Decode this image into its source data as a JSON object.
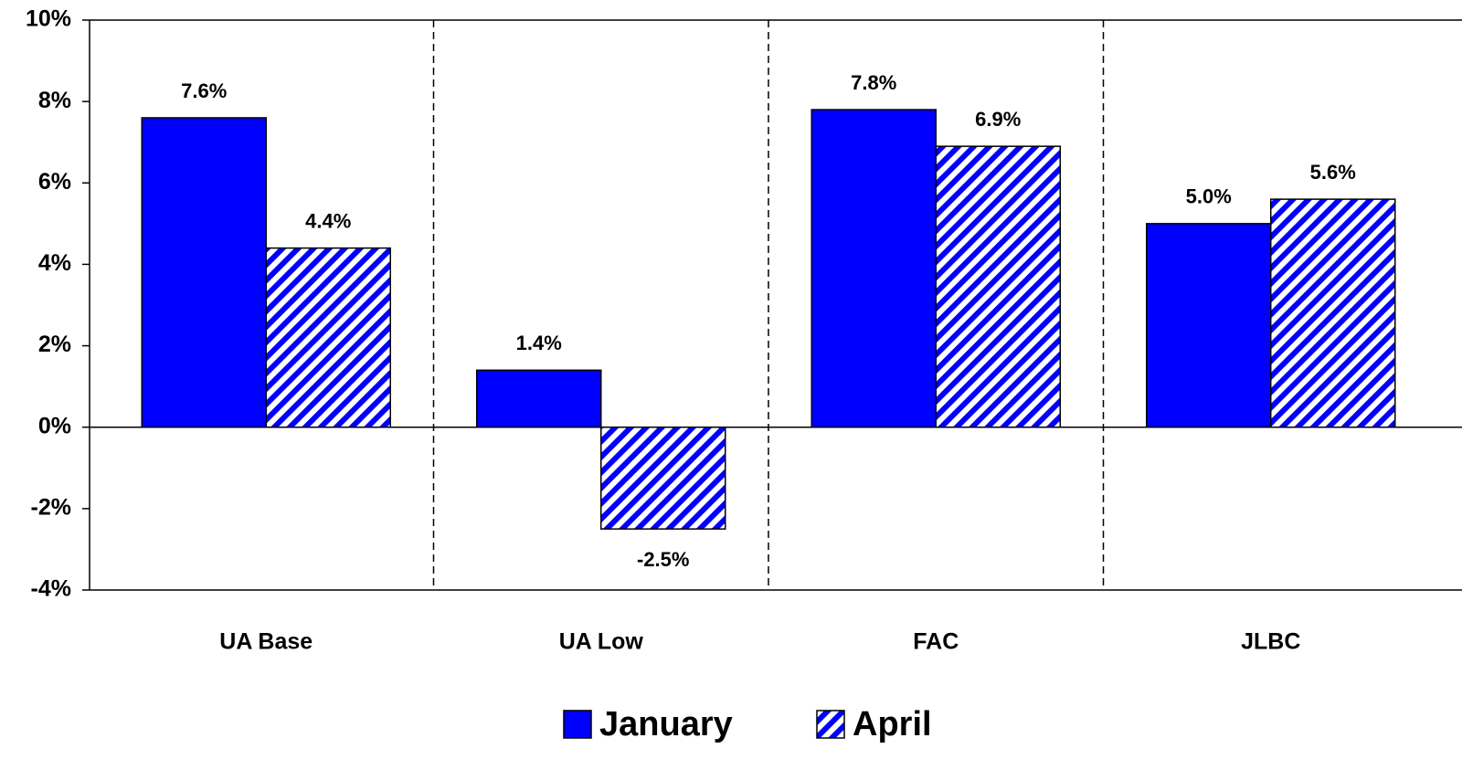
{
  "chart_data": {
    "type": "bar",
    "categories": [
      "UA Base",
      "UA Low",
      "FAC",
      "JLBC"
    ],
    "series": [
      {
        "name": "January",
        "color": "#0000ff",
        "values": [
          7.6,
          1.4,
          7.8,
          5.0
        ],
        "value_labels": [
          "7.6%",
          "1.4%",
          "7.8%",
          "5.0%"
        ]
      },
      {
        "name": "April",
        "color": "#0000ff",
        "hatch": true,
        "values": [
          4.4,
          -2.5,
          6.9,
          5.6
        ],
        "value_labels": [
          "4.4%",
          "-2.5%",
          "6.9%",
          "5.6%"
        ]
      }
    ],
    "ylim": [
      -4,
      10
    ],
    "yticks": [
      {
        "value": -4,
        "label": "-4%"
      },
      {
        "value": -2,
        "label": "-2%"
      },
      {
        "value": 0,
        "label": "0%"
      },
      {
        "value": 2,
        "label": "2%"
      },
      {
        "value": 4,
        "label": "4%"
      },
      {
        "value": 6,
        "label": "6%"
      },
      {
        "value": 8,
        "label": "8%"
      },
      {
        "value": 10,
        "label": "10%"
      }
    ],
    "legend": "bottom"
  }
}
